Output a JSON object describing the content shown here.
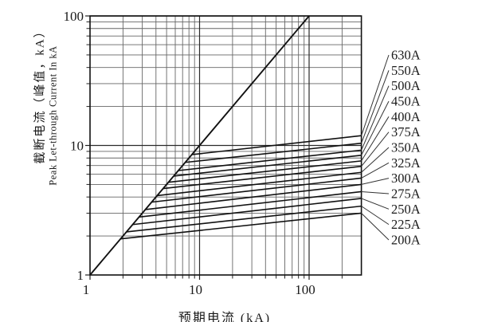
{
  "figure": {
    "y_axis_title_cn": "截断电流（峰值，kA）",
    "y_axis_title_en": "Peak Let-through Current In kA",
    "x_axis_title": "预期电流 (kA)"
  },
  "chart_data": {
    "type": "line",
    "title": "",
    "xlabel": "预期电流 (kA)",
    "ylabel": "截断电流（峰值，kA）/ Peak Let-through Current In kA",
    "x_scale": "log",
    "y_scale": "log",
    "xlim": [
      1,
      300
    ],
    "ylim": [
      1,
      100
    ],
    "grid": true,
    "x_tick_labels": [
      "1",
      "10",
      "100"
    ],
    "x_tick_values": [
      1,
      10,
      100
    ],
    "y_tick_labels": [
      "1",
      "10",
      "100"
    ],
    "y_tick_values": [
      1,
      10,
      100
    ],
    "reference_line": {
      "name": "peak-prospective-diagonal",
      "points": [
        [
          1,
          1
        ],
        [
          100,
          100
        ]
      ]
    },
    "series": [
      {
        "name": "630A",
        "points": [
          [
            8.5,
            8.5
          ],
          [
            300,
            11.9
          ]
        ]
      },
      {
        "name": "550A",
        "points": [
          [
            7.4,
            7.4
          ],
          [
            300,
            10.4
          ]
        ]
      },
      {
        "name": "500A",
        "points": [
          [
            6.4,
            6.4
          ],
          [
            300,
            9.2
          ]
        ]
      },
      {
        "name": "450A",
        "points": [
          [
            5.8,
            5.8
          ],
          [
            300,
            8.4
          ]
        ]
      },
      {
        "name": "400A",
        "points": [
          [
            5.2,
            5.2
          ],
          [
            300,
            7.6
          ]
        ]
      },
      {
        "name": "375A",
        "points": [
          [
            4.65,
            4.65
          ],
          [
            300,
            6.9
          ]
        ]
      },
      {
        "name": "350A",
        "points": [
          [
            4.1,
            4.1
          ],
          [
            300,
            6.2
          ]
        ]
      },
      {
        "name": "325A",
        "points": [
          [
            3.65,
            3.65
          ],
          [
            300,
            5.6
          ]
        ]
      },
      {
        "name": "300A",
        "points": [
          [
            3.2,
            3.2
          ],
          [
            300,
            5.0
          ]
        ]
      },
      {
        "name": "275A",
        "points": [
          [
            2.8,
            2.8
          ],
          [
            300,
            4.4
          ]
        ]
      },
      {
        "name": "250A",
        "points": [
          [
            2.45,
            2.45
          ],
          [
            300,
            3.9
          ]
        ]
      },
      {
        "name": "225A",
        "points": [
          [
            2.15,
            2.15
          ],
          [
            300,
            3.4
          ]
        ]
      },
      {
        "name": "200A",
        "points": [
          [
            1.9,
            1.9
          ],
          [
            300,
            3.0
          ]
        ]
      }
    ],
    "curve_labels": [
      "630A",
      "550A",
      "500A",
      "450A",
      "400A",
      "375A",
      "350A",
      "325A",
      "300A",
      "275A",
      "250A",
      "225A",
      "200A"
    ],
    "legend_position": "right-leader-lines"
  }
}
